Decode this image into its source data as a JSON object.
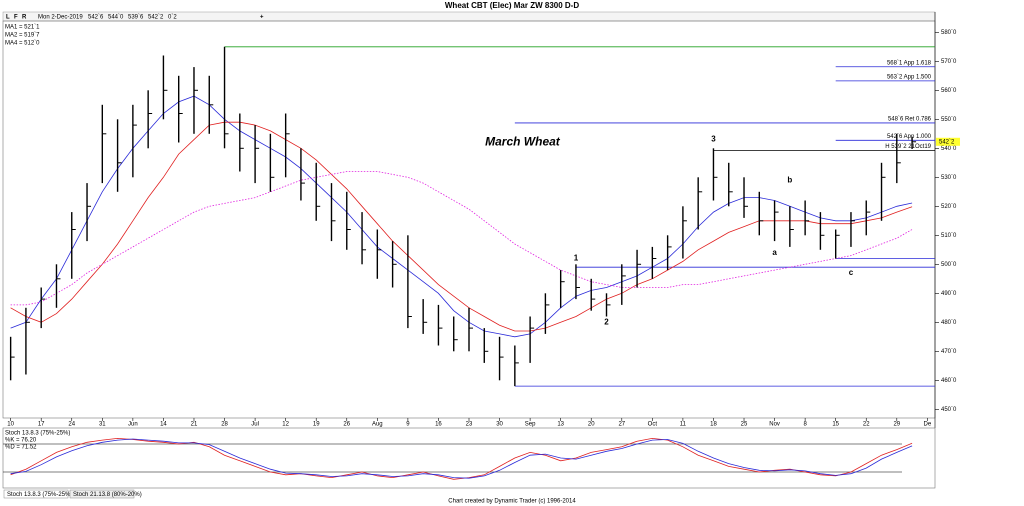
{
  "chart_data": [
    {
      "type": "ohlc",
      "title": "Wheat CBT (Elec) Mar ZW 8300 D-D",
      "header": {
        "flags": [
          "L",
          "F",
          "R"
        ],
        "date": "Mon 2-Dec-2019",
        "open": "542`6",
        "high": "544`0",
        "low": "539`6",
        "close": "542`2",
        "change": "0`2"
      },
      "categories": [
        "10",
        null,
        "17",
        null,
        "24",
        null,
        "31",
        null,
        "Jun",
        null,
        "14",
        null,
        "21",
        null,
        "28",
        null,
        "Jul",
        null,
        "12",
        null,
        "19",
        null,
        "26",
        null,
        "Aug",
        null,
        "9",
        null,
        "16",
        null,
        "23",
        null,
        "30",
        null,
        "Sep",
        null,
        "13",
        null,
        "20",
        null,
        "27",
        null,
        "Oct",
        null,
        "11",
        null,
        "18",
        null,
        "25",
        null,
        "Nov",
        null,
        "8",
        null,
        "15",
        null,
        "22",
        null,
        "29",
        null,
        "De"
      ],
      "high": [
        475,
        485,
        492,
        500,
        518,
        528,
        555,
        550,
        555,
        560,
        572,
        565,
        568,
        565,
        575,
        552,
        548,
        545,
        552,
        540,
        535,
        528,
        525,
        518,
        512,
        508,
        510,
        488,
        486,
        482,
        485,
        478,
        475,
        472,
        482,
        490,
        498,
        500,
        495,
        490,
        500,
        505,
        506,
        510,
        520,
        530,
        540,
        535,
        530,
        525,
        522,
        520,
        522,
        518,
        512,
        518,
        522,
        535,
        545,
        544,
        null
      ],
      "low": [
        460,
        462,
        478,
        485,
        495,
        508,
        528,
        525,
        530,
        540,
        550,
        542,
        545,
        545,
        540,
        532,
        528,
        525,
        530,
        522,
        515,
        508,
        505,
        500,
        495,
        492,
        478,
        476,
        472,
        470,
        470,
        466,
        460,
        458,
        466,
        476,
        485,
        488,
        484,
        482,
        486,
        492,
        495,
        498,
        502,
        512,
        522,
        520,
        516,
        510,
        508,
        506,
        510,
        505,
        502,
        506,
        510,
        515,
        528,
        539.75,
        null
      ],
      "close": [
        468,
        480,
        488,
        495,
        512,
        520,
        545,
        535,
        548,
        552,
        560,
        552,
        560,
        555,
        545,
        540,
        540,
        530,
        545,
        528,
        520,
        515,
        512,
        505,
        505,
        500,
        482,
        480,
        478,
        474,
        478,
        470,
        468,
        466,
        478,
        486,
        494,
        492,
        488,
        486,
        496,
        500,
        502,
        506,
        515,
        525,
        530,
        525,
        520,
        515,
        518,
        512,
        515,
        510,
        510,
        515,
        518,
        530,
        535,
        542.25,
        null
      ],
      "bar_color": "#000000",
      "series": [
        {
          "name": "MA1 = 521`1",
          "color": "#2a2ad8",
          "style": "solid",
          "values": [
            478,
            480,
            488,
            495,
            505,
            515,
            525,
            533,
            540,
            546,
            552,
            556,
            558,
            555,
            550,
            546,
            543,
            540,
            537,
            533,
            528,
            523,
            518,
            512,
            506,
            502,
            498,
            494,
            490,
            484,
            480,
            477,
            476,
            475,
            476,
            480,
            485,
            489,
            491,
            492,
            494,
            496,
            499,
            502,
            507,
            513,
            518,
            521,
            523,
            523,
            522,
            520,
            518,
            516,
            515,
            515,
            516,
            518,
            520,
            521.125,
            null
          ]
        },
        {
          "name": "MA2 = 519`7",
          "color": "#e02020",
          "style": "solid",
          "values": [
            485,
            482,
            480,
            483,
            488,
            494,
            500,
            507,
            515,
            523,
            530,
            538,
            543,
            548,
            549,
            549,
            548,
            546,
            543,
            540,
            536,
            531,
            526,
            520,
            514,
            508,
            503,
            498,
            493,
            489,
            485,
            482,
            479,
            477,
            477,
            478,
            480,
            482,
            485,
            488,
            490,
            493,
            495,
            498,
            501,
            505,
            508,
            511,
            513,
            515,
            515,
            515,
            515,
            514,
            514,
            514,
            515,
            516,
            518,
            519.875,
            null
          ]
        },
        {
          "name": "MA4 = 512`0",
          "color": "#e020e0",
          "style": "dotted",
          "values": [
            486,
            486,
            487,
            490,
            493,
            497,
            500,
            503,
            506,
            509,
            512,
            515,
            518,
            520,
            521,
            522,
            523,
            525,
            527,
            529,
            530,
            531,
            532,
            532,
            532,
            531,
            530,
            528,
            525,
            522,
            519,
            515,
            511,
            507,
            504,
            501,
            498,
            496,
            494,
            493,
            492,
            492,
            492,
            492,
            493,
            493,
            494,
            495,
            496,
            497,
            498,
            499,
            500,
            501,
            502,
            503,
            505,
            507,
            509,
            512,
            null
          ]
        }
      ],
      "ylim": [
        447,
        587
      ],
      "yticks": [
        {
          "value": 450,
          "label": "450`0"
        },
        {
          "value": 460,
          "label": "460`0"
        },
        {
          "value": 470,
          "label": "470`0"
        },
        {
          "value": 480,
          "label": "480`0"
        },
        {
          "value": 490,
          "label": "490`0"
        },
        {
          "value": 500,
          "label": "500`0"
        },
        {
          "value": 510,
          "label": "510`0"
        },
        {
          "value": 520,
          "label": "520`0"
        },
        {
          "value": 530,
          "label": "530`0"
        },
        {
          "value": 540,
          "label": "540`0"
        },
        {
          "value": 550,
          "label": "550`0"
        },
        {
          "value": 560,
          "label": "560`0"
        },
        {
          "value": 570,
          "label": "570`0"
        },
        {
          "value": 580,
          "label": "580`0"
        }
      ],
      "last_price": {
        "value": 542.25,
        "label": "542`2"
      },
      "levels": [
        {
          "value": 575,
          "start": 14,
          "color": "#20a020"
        },
        {
          "value": 568.125,
          "start": 54,
          "color": "#2a2ad8",
          "label": "568`1 App 1.618"
        },
        {
          "value": 563.25,
          "start": 54,
          "color": "#2a2ad8",
          "label": "563`2 App 1.500"
        },
        {
          "value": 548.75,
          "start": 33,
          "color": "#2a2ad8",
          "label": "548`6 Ret 0.786"
        },
        {
          "value": 542.75,
          "start": 54,
          "color": "#2a2ad8",
          "label": "542`6 App 1.000"
        },
        {
          "value": 539.25,
          "start": 46,
          "color": "#000000",
          "label": "H 539`2 21Oct19"
        },
        {
          "value": 502,
          "start": 54,
          "color": "#2a2ad8"
        },
        {
          "value": 499,
          "start": 37,
          "color": "#2a2ad8"
        },
        {
          "value": 458,
          "start": 33,
          "color": "#2a2ad8"
        }
      ],
      "annotations": [
        {
          "text": "March Wheat",
          "index": 33.5,
          "price": 542,
          "color": "#000000"
        },
        {
          "text": "1",
          "index": 37,
          "price": 502,
          "color": "#209020"
        },
        {
          "text": "2",
          "index": 39,
          "price": 480,
          "color": "#209020"
        },
        {
          "text": "3",
          "index": 46,
          "price": 543,
          "color": "#209020"
        },
        {
          "text": "a",
          "index": 50,
          "price": 504,
          "color": "#000000"
        },
        {
          "text": "b",
          "index": 51,
          "price": 529,
          "color": "#000000"
        },
        {
          "text": "c",
          "index": 55,
          "price": 497,
          "color": "#000000"
        }
      ]
    },
    {
      "type": "line",
      "title": "Stoch 13.8.3 (75%-25%)",
      "series": [
        {
          "name": "%K = 76.20",
          "color": "#e02020",
          "values": [
            20,
            30,
            45,
            60,
            70,
            78,
            82,
            85,
            83,
            80,
            78,
            75,
            78,
            70,
            55,
            45,
            35,
            25,
            20,
            22,
            18,
            15,
            20,
            25,
            18,
            15,
            20,
            25,
            18,
            12,
            15,
            20,
            35,
            50,
            60,
            55,
            45,
            50,
            60,
            65,
            70,
            80,
            85,
            82,
            70,
            55,
            45,
            35,
            30,
            25,
            28,
            30,
            25,
            20,
            18,
            25,
            40,
            55,
            65,
            76.2,
            null
          ]
        },
        {
          "name": "%D = 71.52",
          "color": "#2a2ad8",
          "values": [
            22,
            26,
            38,
            52,
            63,
            72,
            78,
            82,
            84,
            82,
            80,
            77,
            77,
            74,
            62,
            50,
            40,
            30,
            23,
            22,
            20,
            17,
            18,
            22,
            20,
            17,
            18,
            22,
            20,
            15,
            14,
            18,
            28,
            42,
            55,
            57,
            50,
            48,
            55,
            62,
            67,
            75,
            82,
            83,
            76,
            62,
            50,
            40,
            33,
            28,
            27,
            29,
            27,
            22,
            19,
            22,
            32,
            48,
            60,
            71.52,
            null
          ]
        }
      ],
      "ylim": [
        0,
        100
      ],
      "levels": [
        75,
        25
      ]
    }
  ],
  "tabs": [
    "Stoch 13.8.3 (75%-25%)",
    "Stoch 21.13.8 (80%-20%)"
  ],
  "footer": "Chart created by Dynamic Trader  (c)  1996-2014"
}
